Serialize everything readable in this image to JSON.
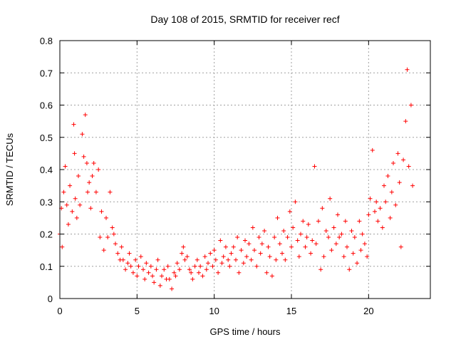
{
  "chart_data": {
    "type": "scatter",
    "title": "Day 108 of 2015, SRMTID for receiver recf",
    "xlabel": "GPS time / hours",
    "ylabel": "SRMTID / TECUs",
    "xlim": [
      0,
      24
    ],
    "ylim": [
      0,
      0.8
    ],
    "xticks": [
      0,
      5,
      10,
      15,
      20
    ],
    "yticks": [
      0,
      0.1,
      0.2,
      0.3,
      0.4,
      0.5,
      0.6,
      0.7,
      0.8
    ],
    "grid": true,
    "marker": "+",
    "series": [
      {
        "name": "recf",
        "color": "#ff0000",
        "x": [
          0.0,
          0.1,
          0.15,
          0.25,
          0.35,
          0.45,
          0.55,
          0.65,
          0.8,
          0.9,
          0.95,
          1.0,
          1.1,
          1.2,
          1.3,
          1.45,
          1.55,
          1.65,
          1.75,
          1.8,
          1.9,
          2.0,
          2.1,
          2.2,
          2.35,
          2.5,
          2.6,
          2.7,
          2.85,
          3.0,
          3.1,
          3.25,
          3.4,
          3.5,
          3.6,
          3.75,
          3.9,
          4.0,
          4.1,
          4.25,
          4.4,
          4.5,
          4.6,
          4.75,
          4.9,
          5.0,
          5.1,
          5.25,
          5.4,
          5.5,
          5.6,
          5.75,
          5.9,
          6.0,
          6.1,
          6.25,
          6.35,
          6.5,
          6.6,
          6.75,
          6.9,
          7.0,
          7.1,
          7.25,
          7.4,
          7.5,
          7.6,
          7.75,
          7.9,
          8.0,
          8.1,
          8.25,
          8.4,
          8.5,
          8.6,
          8.75,
          8.9,
          9.0,
          9.1,
          9.25,
          9.4,
          9.5,
          9.6,
          9.75,
          9.9,
          10.0,
          10.1,
          10.25,
          10.4,
          10.5,
          10.6,
          10.75,
          10.9,
          11.0,
          11.1,
          11.25,
          11.4,
          11.5,
          11.6,
          11.75,
          11.9,
          12.0,
          12.1,
          12.25,
          12.4,
          12.5,
          12.6,
          12.75,
          12.9,
          13.0,
          13.1,
          13.25,
          13.4,
          13.5,
          13.6,
          13.75,
          13.9,
          14.0,
          14.1,
          14.25,
          14.4,
          14.5,
          14.6,
          14.75,
          14.9,
          15.0,
          15.1,
          15.25,
          15.4,
          15.5,
          15.6,
          15.75,
          15.9,
          16.0,
          16.1,
          16.25,
          16.35,
          16.5,
          16.6,
          16.75,
          16.9,
          17.0,
          17.1,
          17.25,
          17.4,
          17.5,
          17.6,
          17.75,
          17.9,
          18.0,
          18.1,
          18.25,
          18.4,
          18.5,
          18.6,
          18.75,
          18.9,
          19.0,
          19.1,
          19.25,
          19.4,
          19.5,
          19.6,
          19.75,
          19.9,
          20.0,
          20.1,
          20.25,
          20.4,
          20.5,
          20.6,
          20.75,
          20.9,
          21.0,
          21.1,
          21.25,
          21.4,
          21.5,
          21.6,
          21.75,
          21.9,
          22.0,
          22.1,
          22.25,
          22.4,
          22.5,
          22.6,
          22.75,
          22.85
        ],
        "y": [
          0.2,
          0.28,
          0.16,
          0.33,
          0.41,
          0.29,
          0.23,
          0.35,
          0.27,
          0.54,
          0.45,
          0.31,
          0.25,
          0.38,
          0.29,
          0.51,
          0.44,
          0.57,
          0.42,
          0.33,
          0.36,
          0.28,
          0.38,
          0.42,
          0.33,
          0.4,
          0.19,
          0.27,
          0.15,
          0.25,
          0.19,
          0.33,
          0.22,
          0.2,
          0.17,
          0.14,
          0.12,
          0.16,
          0.12,
          0.09,
          0.11,
          0.14,
          0.1,
          0.08,
          0.12,
          0.07,
          0.1,
          0.13,
          0.09,
          0.06,
          0.11,
          0.08,
          0.1,
          0.07,
          0.05,
          0.09,
          0.12,
          0.04,
          0.07,
          0.09,
          0.06,
          0.1,
          0.06,
          0.03,
          0.08,
          0.07,
          0.11,
          0.09,
          0.14,
          0.16,
          0.12,
          0.13,
          0.09,
          0.08,
          0.06,
          0.1,
          0.12,
          0.08,
          0.1,
          0.07,
          0.13,
          0.09,
          0.11,
          0.14,
          0.1,
          0.15,
          0.12,
          0.08,
          0.18,
          0.11,
          0.13,
          0.16,
          0.12,
          0.1,
          0.14,
          0.16,
          0.12,
          0.19,
          0.08,
          0.15,
          0.11,
          0.18,
          0.13,
          0.17,
          0.12,
          0.22,
          0.15,
          0.1,
          0.19,
          0.14,
          0.17,
          0.21,
          0.08,
          0.16,
          0.13,
          0.07,
          0.19,
          0.12,
          0.25,
          0.17,
          0.14,
          0.21,
          0.12,
          0.19,
          0.27,
          0.16,
          0.22,
          0.3,
          0.18,
          0.13,
          0.2,
          0.24,
          0.16,
          0.19,
          0.23,
          0.14,
          0.18,
          0.41,
          0.17,
          0.24,
          0.09,
          0.28,
          0.13,
          0.21,
          0.19,
          0.31,
          0.15,
          0.22,
          0.17,
          0.26,
          0.19,
          0.2,
          0.13,
          0.24,
          0.16,
          0.09,
          0.21,
          0.14,
          0.19,
          0.11,
          0.24,
          0.15,
          0.2,
          0.17,
          0.13,
          0.26,
          0.31,
          0.46,
          0.27,
          0.3,
          0.24,
          0.28,
          0.22,
          0.35,
          0.3,
          0.38,
          0.25,
          0.33,
          0.42,
          0.29,
          0.45,
          0.36,
          0.16,
          0.43,
          0.55,
          0.71,
          0.41,
          0.6,
          0.35
        ]
      }
    ]
  }
}
